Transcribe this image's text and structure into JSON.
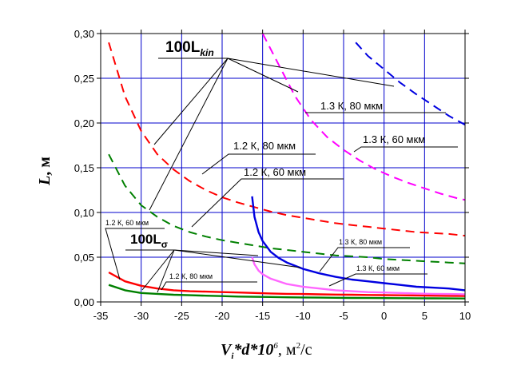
{
  "chart_data": {
    "type": "line",
    "title": "",
    "xlabel": {
      "var": "V",
      "sub": "i",
      "mid": "*d*10",
      "sup1": "6",
      "unit": ", м",
      "sup2": "2",
      "tail": "/с"
    },
    "ylabel": {
      "var": "L",
      "unit": ", м"
    },
    "xlim": [
      -35,
      10
    ],
    "ylim": [
      0,
      0.3
    ],
    "xticks": [
      "-35",
      "-30",
      "-25",
      "-20",
      "-15",
      "-10",
      "-5",
      "0",
      "5",
      "10"
    ],
    "yticks": [
      "0,00",
      "0,05",
      "0,10",
      "0,15",
      "0,20",
      "0,25",
      "0,30"
    ],
    "grid": true,
    "colors": {
      "grid": "#0000cc",
      "red": "#ff0000",
      "green": "#008000",
      "magenta": "#ff00ff",
      "blue": "#0000e0",
      "pink": "#ff66ff"
    },
    "series": [
      {
        "name": "100L_kin 1.2 К, 80 мкм",
        "color": "#ff0000",
        "dash": true,
        "x": [
          -34,
          -32,
          -30,
          -28,
          -26,
          -24,
          -22,
          -20,
          -18,
          -16,
          -14,
          -12,
          -10,
          -8,
          -6,
          -4,
          -2,
          0,
          2,
          4,
          6,
          8,
          10
        ],
        "y": [
          0.29,
          0.23,
          0.191,
          0.165,
          0.148,
          0.135,
          0.125,
          0.117,
          0.111,
          0.106,
          0.101,
          0.097,
          0.094,
          0.091,
          0.088,
          0.086,
          0.084,
          0.082,
          0.08,
          0.078,
          0.077,
          0.076,
          0.074
        ]
      },
      {
        "name": "100L_kin 1.2 К, 60 мкм",
        "color": "#008000",
        "dash": true,
        "x": [
          -34,
          -32,
          -30,
          -28,
          -26,
          -24,
          -22,
          -20,
          -18,
          -16,
          -14,
          -12,
          -10,
          -8,
          -6,
          -4,
          -2,
          0,
          2,
          4,
          6,
          8,
          10
        ],
        "y": [
          0.165,
          0.13,
          0.108,
          0.095,
          0.085,
          0.078,
          0.073,
          0.069,
          0.066,
          0.063,
          0.06,
          0.058,
          0.056,
          0.054,
          0.052,
          0.051,
          0.05,
          0.048,
          0.047,
          0.046,
          0.045,
          0.044,
          0.043
        ]
      },
      {
        "name": "100L_kin 1.3 К, 80 мкм",
        "color": "#0000e0",
        "dash": true,
        "x": [
          -3.5,
          -2,
          0,
          2,
          4,
          6,
          8,
          10
        ],
        "y": [
          0.29,
          0.275,
          0.26,
          0.245,
          0.232,
          0.22,
          0.208,
          0.198
        ]
      },
      {
        "name": "100L_kin 1.3 К, 60 мкм",
        "color": "#ff00ff",
        "dash": true,
        "x": [
          -15,
          -13,
          -11,
          -9,
          -7,
          -5,
          -3,
          -1,
          1,
          3,
          5,
          7,
          9,
          10
        ],
        "y": [
          0.3,
          0.265,
          0.23,
          0.203,
          0.184,
          0.17,
          0.158,
          0.148,
          0.14,
          0.133,
          0.127,
          0.121,
          0.116,
          0.114
        ]
      },
      {
        "name": "100L_σ 1.2 К, 80 мкм",
        "color": "#ff0000",
        "dash": false,
        "x": [
          -34,
          -32,
          -30,
          -28,
          -26,
          -24,
          -22,
          -20,
          -18,
          -16,
          -14,
          -12,
          -10,
          -8,
          -6,
          -4,
          -2,
          0,
          2,
          4,
          6,
          8,
          10
        ],
        "y": [
          0.033,
          0.023,
          0.018,
          0.015,
          0.013,
          0.012,
          0.0115,
          0.011,
          0.0105,
          0.01,
          0.0095,
          0.009,
          0.0088,
          0.0085,
          0.0082,
          0.008,
          0.0078,
          0.0076,
          0.0074,
          0.0072,
          0.007,
          0.0068,
          0.0066
        ]
      },
      {
        "name": "100L_σ 1.2 К, 60 мкм",
        "color": "#008000",
        "dash": false,
        "x": [
          -34,
          -32,
          -30,
          -28,
          -26,
          -24,
          -22,
          -20,
          -18,
          -16,
          -14,
          -12,
          -10,
          -8,
          -6,
          -4,
          -2,
          0,
          2,
          4,
          6,
          8,
          10
        ],
        "y": [
          0.019,
          0.013,
          0.01,
          0.009,
          0.008,
          0.0075,
          0.007,
          0.0065,
          0.006,
          0.0057,
          0.0055,
          0.0052,
          0.005,
          0.0048,
          0.0046,
          0.0045,
          0.0044,
          0.0043,
          0.0042,
          0.0041,
          0.004,
          0.0039,
          0.0038
        ]
      },
      {
        "name": "100L_σ 1.3 К, 80 мкм",
        "color": "#0000e0",
        "dash": false,
        "x": [
          -16.3,
          -16,
          -15.5,
          -15,
          -14,
          -13,
          -12,
          -10,
          -8,
          -6,
          -4,
          -2,
          0,
          2,
          4,
          6,
          8,
          10
        ],
        "y": [
          0.118,
          0.095,
          0.078,
          0.068,
          0.056,
          0.049,
          0.044,
          0.037,
          0.032,
          0.028,
          0.025,
          0.023,
          0.021,
          0.019,
          0.017,
          0.016,
          0.015,
          0.013
        ]
      },
      {
        "name": "100L_σ 1.3 К, 60 мкм",
        "color": "#ff66ff",
        "dash": false,
        "x": [
          -16.3,
          -16,
          -15.5,
          -15,
          -14,
          -12,
          -10,
          -8,
          -6,
          -4,
          -2,
          0,
          2,
          4,
          6,
          8,
          10
        ],
        "y": [
          0.05,
          0.042,
          0.035,
          0.031,
          0.026,
          0.02,
          0.017,
          0.015,
          0.013,
          0.012,
          0.011,
          0.0105,
          0.01,
          0.0095,
          0.009,
          0.0088,
          0.0085
        ]
      }
    ],
    "annotations": {
      "kin_label": "100L",
      "kin_sub": "kin",
      "sigma_label": "100L",
      "sigma_sub": "σ",
      "lbl_13_80_kin": "1.3 К, 80 мкм",
      "lbl_13_60_kin": "1.3 К, 60 мкм",
      "lbl_12_80_kin": "1.2 К, 80 мкм",
      "lbl_12_60_kin": "1.2 К, 60 мкм",
      "lbl_12_60_sig": "1.2 К, 60 мкм",
      "lbl_12_80_sig": "1.2 К, 80 мкм",
      "lbl_13_80_sig": "1.3 К, 80 мкм",
      "lbl_13_60_sig": "1.3 К, 60 мкм"
    }
  }
}
